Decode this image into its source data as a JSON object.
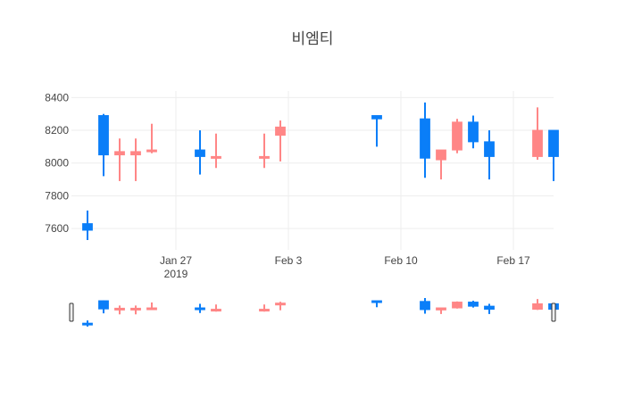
{
  "chart_data": {
    "type": "candlestick",
    "title": "비엠티",
    "xlabel": "",
    "ylabel": "",
    "x_ticks": [
      {
        "date": "2019-01-27",
        "label": "Jan 27",
        "sublabel": "2019"
      },
      {
        "date": "2019-02-03",
        "label": "Feb 3",
        "sublabel": ""
      },
      {
        "date": "2019-02-10",
        "label": "Feb 10",
        "sublabel": ""
      },
      {
        "date": "2019-02-17",
        "label": "Feb 17",
        "sublabel": ""
      }
    ],
    "y_ticks": [
      7600,
      7800,
      8000,
      8200,
      8400
    ],
    "xlim": [
      "2019-01-20T12:00",
      "2019-02-19T12:00"
    ],
    "ylim": [
      7470,
      8440
    ],
    "grid": true,
    "rangeslider": true,
    "increasing_color": "#ff8686",
    "decreasing_color": "#0a7ef8",
    "candles": [
      {
        "date": "2019-01-21",
        "open": 7630,
        "high": 7710,
        "low": 7530,
        "close": 7590
      },
      {
        "date": "2019-01-22",
        "open": 8290,
        "high": 8300,
        "low": 7920,
        "close": 8050
      },
      {
        "date": "2019-01-23",
        "open": 8050,
        "high": 8150,
        "low": 7890,
        "close": 8070
      },
      {
        "date": "2019-01-24",
        "open": 8050,
        "high": 8150,
        "low": 7890,
        "close": 8070
      },
      {
        "date": "2019-01-25",
        "open": 8070,
        "high": 8240,
        "low": 8060,
        "close": 8080
      },
      {
        "date": "2019-01-28",
        "open": 8080,
        "high": 8200,
        "low": 7930,
        "close": 8040
      },
      {
        "date": "2019-01-29",
        "open": 8040,
        "high": 8180,
        "low": 7970,
        "close": 8040
      },
      {
        "date": "2019-02-01",
        "open": 8040,
        "high": 8180,
        "low": 7970,
        "close": 8040
      },
      {
        "date": "2019-02-02",
        "open": 8170,
        "high": 8260,
        "low": 8010,
        "close": 8220
      },
      {
        "date": "2019-02-08",
        "open": 8290,
        "high": 8290,
        "low": 8100,
        "close": 8270
      },
      {
        "date": "2019-02-11",
        "open": 8270,
        "high": 8370,
        "low": 7910,
        "close": 8030
      },
      {
        "date": "2019-02-12",
        "open": 8020,
        "high": 8080,
        "low": 7900,
        "close": 8080
      },
      {
        "date": "2019-02-13",
        "open": 8080,
        "high": 8270,
        "low": 8060,
        "close": 8250
      },
      {
        "date": "2019-02-14",
        "open": 8250,
        "high": 8290,
        "low": 8090,
        "close": 8130
      },
      {
        "date": "2019-02-15",
        "open": 8130,
        "high": 8200,
        "low": 7900,
        "close": 8040
      },
      {
        "date": "2019-02-18",
        "open": 8040,
        "high": 8340,
        "low": 8020,
        "close": 8200
      },
      {
        "date": "2019-02-19",
        "open": 8200,
        "high": 8200,
        "low": 7890,
        "close": 8040
      }
    ]
  }
}
